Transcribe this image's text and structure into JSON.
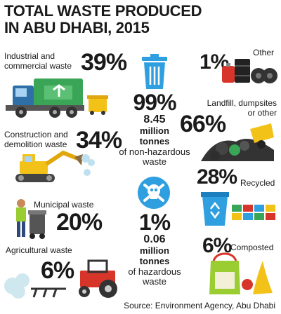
{
  "title_line1": "TOTAL WASTE PRODUCED",
  "title_line2": "IN ABU DHABI, 2015",
  "chart_data": {
    "type": "table",
    "title": "TOTAL WASTE PRODUCED IN ABU DHABI, 2015",
    "sources": [
      {
        "label_line1": "Industrial and",
        "label_line2": "commercial waste",
        "value": 39,
        "display": "39%"
      },
      {
        "label_line1": "Construction and",
        "label_line2": "demolition waste",
        "value": 34,
        "display": "34%"
      },
      {
        "label_line1": "Municipal waste",
        "label_line2": "",
        "value": 20,
        "display": "20%"
      },
      {
        "label_line1": "Agricultural waste",
        "label_line2": "",
        "value": 6,
        "display": "6%"
      },
      {
        "label_line1": "Other",
        "label_line2": "",
        "value": 1,
        "display": "1%"
      }
    ],
    "non_hazardous": {
      "pct_display": "99%",
      "amount": "8.45",
      "unit": "million",
      "unit2": "tonnes",
      "desc1": "of non-hazardous",
      "desc2": "waste"
    },
    "hazardous": {
      "pct_display": "1%",
      "amount": "0.06",
      "unit": "million",
      "unit2": "tonnes",
      "desc1": "of hazardous",
      "desc2": "waste"
    },
    "disposal": [
      {
        "label_line1": "Landfill, dumpsites",
        "label_line2": "or other",
        "value": 66,
        "display": "66%"
      },
      {
        "label_line1": "Recycled",
        "label_line2": "",
        "value": 28,
        "display": "28%"
      },
      {
        "label_line1": "Composted",
        "label_line2": "",
        "value": 6,
        "display": "6%"
      }
    ]
  },
  "source": "Source: Environment Agency, Abu Dhabi",
  "colors": {
    "accent_blue": "#2f9fe0",
    "dark": "#1a1a1a",
    "green": "#3aa556",
    "yellow": "#f2c218",
    "red": "#d8352a"
  },
  "icons": [
    "truck-icon",
    "bin-icon",
    "excavator-icon",
    "worker-icon",
    "tractor-icon",
    "trash-can-icon",
    "skull-icon",
    "barrels-icon",
    "landfill-icon",
    "recycle-bin-icon",
    "compost-bag-icon"
  ]
}
